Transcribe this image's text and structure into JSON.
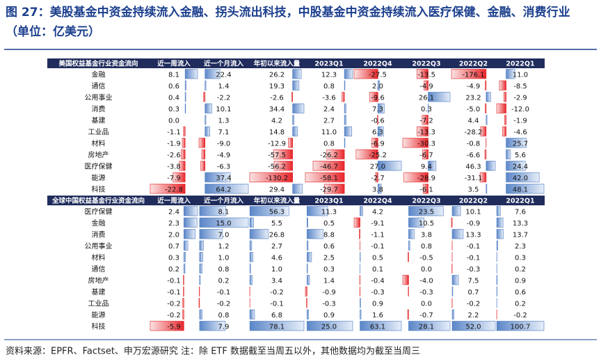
{
  "title": [
    "图 27：美股基金中资金持续流入金融、拐头流出科技，中股基金中资金持续流入医疗保健、金融、消费行业",
    "（单位：亿美元）"
  ],
  "tables": [
    {
      "header": [
        "美国权益基金行业资金流向",
        "近一周流入",
        "近一个月流入",
        "年初以来流入量",
        "2023Q1",
        "2022Q4",
        "2022Q3",
        "2022Q2",
        "2022Q1"
      ],
      "rows": [
        {
          "label": "金融",
          "cells": [
            "8.1",
            "22.4",
            "26.2",
            "12.3",
            "-27.5",
            "-13.5",
            "-176.1",
            "11.0"
          ]
        },
        {
          "label": "通信",
          "cells": [
            "0.6",
            "1.4",
            "19.3",
            "0.8",
            "2.0",
            "-4.9",
            "-4.9",
            "-8.5"
          ]
        },
        {
          "label": "公用事业",
          "cells": [
            "0.4",
            "-2.2",
            "-2.6",
            "-3.6",
            "-9.6",
            "26.1",
            "23.2",
            "-2.9"
          ]
        },
        {
          "label": "消费",
          "cells": [
            "0.3",
            "10.1",
            "34.4",
            "2.4",
            "7.3",
            "0.3",
            "-5.0",
            "-12.0"
          ]
        },
        {
          "label": "基建",
          "cells": [
            "0.0",
            "1.3",
            "4.2",
            "2.7",
            "-0.6",
            "-7.2",
            "4.4",
            "-1.9"
          ]
        },
        {
          "label": "工业品",
          "cells": [
            "-1.1",
            "7.1",
            "14.8",
            "11.0",
            "6.3",
            "-13.3",
            "-28.2",
            "-4.6"
          ]
        },
        {
          "label": "材料",
          "cells": [
            "-1.9",
            "-9.0",
            "-12.9",
            "0.8",
            "-6.9",
            "-30.3",
            "-0.8",
            "25.7"
          ]
        },
        {
          "label": "房地产",
          "cells": [
            "-2.6",
            "-4.9",
            "-57.5",
            "-26.2",
            "-25.2",
            "-6.7",
            "-6.6",
            "5.6"
          ]
        },
        {
          "label": "医疗保健",
          "cells": [
            "-3.8",
            "-6.3",
            "-56.2",
            "-46.7",
            "27.0",
            "9.4",
            "46.3",
            "24.4"
          ]
        },
        {
          "label": "能源",
          "cells": [
            "-7.9",
            "37.4",
            "-130.2",
            "-58.1",
            "-2.7",
            "-28.9",
            "-31.1",
            "42.0"
          ]
        },
        {
          "label": "科技",
          "cells": [
            "-22.8",
            "64.2",
            "29.4",
            "-29.7",
            "3.8",
            "-6.1",
            "3.5",
            "48.1"
          ]
        }
      ]
    },
    {
      "header": [
        "全球中国权益基金行业资金流向",
        "近一周流入",
        "近一个月流入",
        "年初以来流入量",
        "2023Q1",
        "2022Q4",
        "2022Q3",
        "2022Q2",
        "2022Q1"
      ],
      "rows": [
        {
          "label": "医疗保健",
          "cells": [
            "2.4",
            "8.1",
            "56.3",
            "11.3",
            "4.2",
            "23.5",
            "10.1",
            "7.6"
          ]
        },
        {
          "label": "金融",
          "cells": [
            "2.3",
            "15.0",
            "5.5",
            "0.5",
            "-9.1",
            "10.5",
            "-0.9",
            "13.3"
          ]
        },
        {
          "label": "消费",
          "cells": [
            "2.0",
            "7.0",
            "26.8",
            "8.8",
            "-1.1",
            "3.8",
            "13.3",
            "13.7"
          ]
        },
        {
          "label": "公用事业",
          "cells": [
            "0.7",
            "1.2",
            "2.7",
            "0.6",
            "-0.1",
            "0.8",
            "-0.1",
            "2.3"
          ]
        },
        {
          "label": "材料",
          "cells": [
            "0.3",
            "1.0",
            "4.6",
            "2.5",
            "0.5",
            "-0.5",
            "-0.1",
            "0.3"
          ]
        },
        {
          "label": "通信",
          "cells": [
            "0.2",
            "0.8",
            "1.0",
            "0.3",
            "0.1",
            "0.0",
            "-0.3",
            "0.2"
          ]
        },
        {
          "label": "房地产",
          "cells": [
            "-0.1",
            "0.2",
            "3.4",
            "1.4",
            "-0.4",
            "-4.0",
            "7.5",
            "0.9"
          ]
        },
        {
          "label": "基建",
          "cells": [
            "-0.1",
            "-0.1",
            "-0.2",
            "-0.9",
            "-0.3",
            "-0.3",
            "0.7",
            "0.6"
          ]
        },
        {
          "label": "工业品",
          "cells": [
            "-0.2",
            "-0.2",
            "-0.1",
            "-0.3",
            "0.9",
            "0.0",
            "-0.2",
            "0.2"
          ]
        },
        {
          "label": "能源",
          "cells": [
            "-0.2",
            "0.8",
            "6.8",
            "0.9",
            "1.6",
            "-0.7",
            "2.2",
            "-0.2"
          ]
        },
        {
          "label": "科技",
          "cells": [
            "-5.9",
            "7.9",
            "78.1",
            "25.0",
            "63.1",
            "28.1",
            "52.0",
            "100.7"
          ]
        }
      ]
    }
  ],
  "source": "资料来源：EPFR、Factset、申万宏源研究 注：除 ETF 数据截至当周五以外，其他数据均为截至当周三"
}
